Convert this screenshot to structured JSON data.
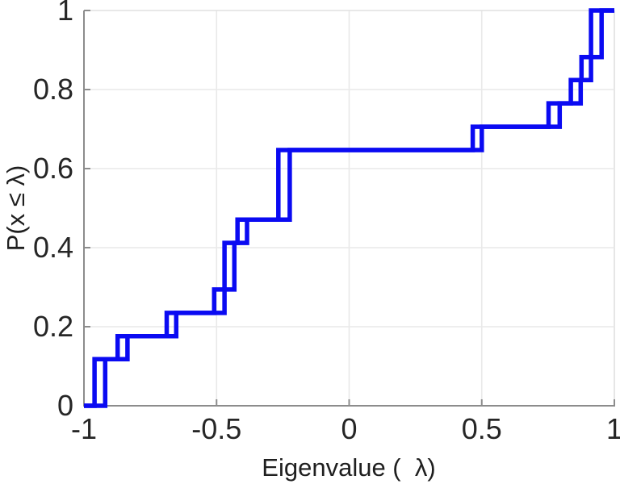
{
  "chart_data": {
    "type": "line",
    "subtype": "empirical-cdf-staircase",
    "title": "",
    "xlabel": "Eigenvalue (  λ)",
    "ylabel": "P(x ≤ λ)",
    "xlim": [
      -1,
      1
    ],
    "ylim": [
      0,
      1
    ],
    "x_ticks": [
      -1,
      -0.5,
      0,
      0.5,
      1
    ],
    "x_tick_labels": [
      "-1",
      "-0.5",
      "0",
      "0.5",
      "1"
    ],
    "y_ticks": [
      0,
      0.2,
      0.4,
      0.6,
      0.8,
      1
    ],
    "y_tick_labels": [
      "0",
      "0.2",
      "0.4",
      "0.6",
      "0.8",
      "1"
    ],
    "grid": true,
    "legend": null,
    "line_color": "#0a0af2",
    "grid_color": "#e9e9e9",
    "axis_color": "#8c8c8c",
    "box_color": "#e0e0e0",
    "tick_text_color": "#262626",
    "levels": [
      0.118,
      0.176,
      0.235,
      0.294,
      0.412,
      0.471,
      0.647,
      0.706,
      0.765,
      0.824,
      0.882,
      1.0
    ],
    "series": [
      {
        "name": "staircase-leading",
        "jump_x": [
          -0.96,
          -0.873,
          -0.688,
          -0.509,
          -0.47,
          -0.421,
          -0.267,
          0.466,
          0.752,
          0.836,
          0.876,
          0.912
        ]
      },
      {
        "name": "staircase-trailing",
        "jump_x": [
          -0.92,
          -0.836,
          -0.652,
          -0.47,
          -0.433,
          -0.385,
          -0.224,
          0.5,
          0.794,
          0.873,
          0.912,
          0.952
        ]
      }
    ]
  }
}
